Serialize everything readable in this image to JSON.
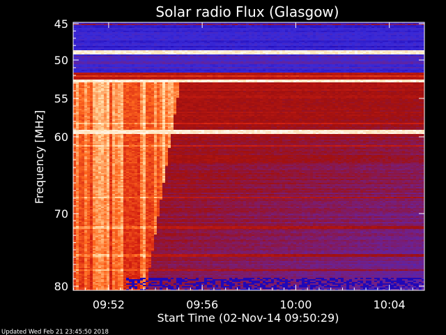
{
  "chart_data": {
    "type": "heatmap",
    "title": "Solar radio Flux (Glasgow)",
    "ylabel": "Frequency [MHz]",
    "xlabel": "Start Time (02-Nov-14 09:50:29)",
    "footer": "Updated Wed Feb 21 23:45:50 2018",
    "y_axis": {
      "ylim": [
        45,
        80
      ],
      "inverted": true,
      "scale": "nonlinear",
      "ticks": [
        {
          "label": "45",
          "value": 45
        },
        {
          "label": "50",
          "value": 50
        },
        {
          "label": "55",
          "value": 55
        },
        {
          "label": "60",
          "value": 60
        },
        {
          "label": "70",
          "value": 70
        },
        {
          "label": "80",
          "value": 80
        }
      ]
    },
    "x_axis": {
      "start": "09:50:29",
      "end": "10:05:30",
      "ticks": [
        {
          "label": "09:52",
          "value": "09:52"
        },
        {
          "label": "09:56",
          "value": "09:56"
        },
        {
          "label": "10:00",
          "value": "10:00"
        },
        {
          "label": "10:04",
          "value": "10:04"
        }
      ]
    },
    "colormap": [
      "#000000",
      "#1a00b0",
      "#3a2ad8",
      "#70208a",
      "#a01010",
      "#d42010",
      "#ff6a20",
      "#ffd8a0",
      "#ffffff"
    ],
    "features": {
      "burst_start": "09:50:29",
      "burst_end": "09:54:30",
      "burst_freq_range": [
        52.5,
        80
      ],
      "bright_lines_mhz": [
        48.9,
        52.7,
        59.4
      ]
    }
  }
}
